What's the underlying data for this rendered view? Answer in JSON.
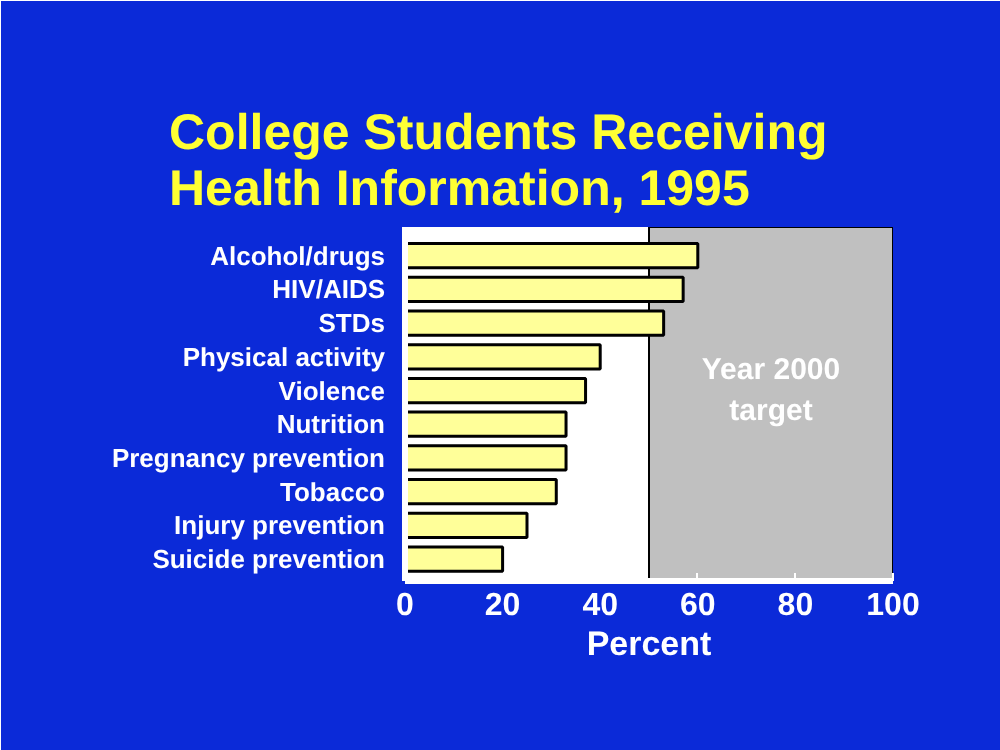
{
  "chart_data": {
    "type": "bar",
    "orientation": "horizontal",
    "title": "College Students Receiving Health Information, 1995",
    "xlabel": "Percent",
    "categories": [
      "Alcohol/drugs",
      "HIV/AIDS",
      "STDs",
      "Physical activity",
      "Violence",
      "Nutrition",
      "Pregnancy prevention",
      "Tobacco",
      "Injury prevention",
      "Suicide prevention"
    ],
    "values": [
      60,
      57,
      53,
      40,
      37,
      33,
      33,
      31,
      25,
      20
    ],
    "color": "#ffff99",
    "xlim": [
      0,
      100
    ],
    "xticks": [
      0,
      20,
      40,
      60,
      80,
      100
    ],
    "grid": false,
    "bands": [
      {
        "axis": "x",
        "from": 50,
        "to": 100,
        "label": "Year 2000 target",
        "color": "#c0c0c0"
      }
    ]
  }
}
